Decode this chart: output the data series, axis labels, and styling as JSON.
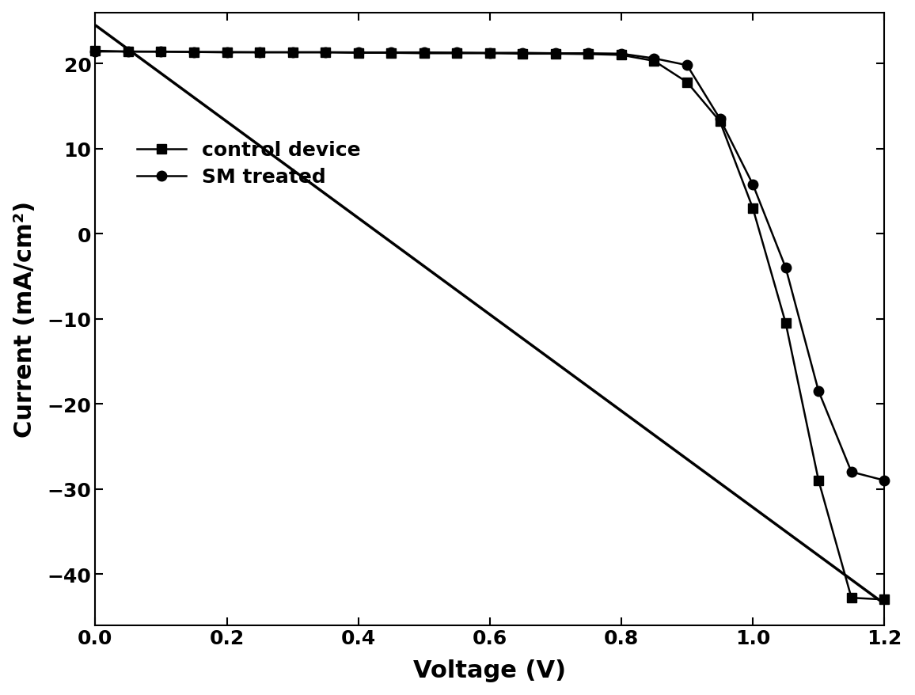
{
  "control_x": [
    0.0,
    0.05,
    0.1,
    0.15,
    0.2,
    0.25,
    0.3,
    0.35,
    0.4,
    0.45,
    0.5,
    0.55,
    0.6,
    0.65,
    0.7,
    0.75,
    0.8,
    0.85,
    0.9,
    0.95,
    1.0,
    1.05,
    1.1,
    1.15,
    1.2
  ],
  "control_y": [
    21.5,
    21.4,
    21.4,
    21.35,
    21.3,
    21.3,
    21.3,
    21.3,
    21.25,
    21.25,
    21.2,
    21.2,
    21.2,
    21.15,
    21.15,
    21.1,
    21.0,
    20.3,
    17.8,
    13.2,
    3.0,
    -10.5,
    -29.0,
    -42.8,
    -43.0
  ],
  "sm_x": [
    0.0,
    0.05,
    0.1,
    0.15,
    0.2,
    0.25,
    0.3,
    0.35,
    0.4,
    0.45,
    0.5,
    0.55,
    0.6,
    0.65,
    0.7,
    0.75,
    0.8,
    0.85,
    0.9,
    0.95,
    1.0,
    1.05,
    1.1,
    1.15,
    1.2
  ],
  "sm_y": [
    21.4,
    21.4,
    21.38,
    21.35,
    21.35,
    21.33,
    21.33,
    21.33,
    21.3,
    21.3,
    21.3,
    21.28,
    21.25,
    21.25,
    21.2,
    21.2,
    21.15,
    20.6,
    19.8,
    13.5,
    5.8,
    -4.0,
    -18.5,
    -28.0,
    -29.0
  ],
  "line_x": [
    0.0,
    1.2
  ],
  "line_y": [
    24.5,
    -43.5
  ],
  "xlabel": "Voltage (V)",
  "ylabel": "Current (mA/cm²)",
  "xlim": [
    0.0,
    1.2
  ],
  "ylim": [
    -46,
    26
  ],
  "yticks": [
    -40,
    -30,
    -20,
    -10,
    0,
    10,
    20
  ],
  "xticks": [
    0.0,
    0.2,
    0.4,
    0.6,
    0.8,
    1.0,
    1.2
  ],
  "legend_control": "control device",
  "legend_sm": "SM treated",
  "line_color": "#000000",
  "curve_color": "#000000",
  "bg_color": "#ffffff",
  "title_fontsize": 0,
  "axis_label_fontsize": 22,
  "tick_fontsize": 18,
  "legend_fontsize": 18,
  "linewidth": 1.8,
  "markersize": 9,
  "spine_linewidth": 1.5
}
